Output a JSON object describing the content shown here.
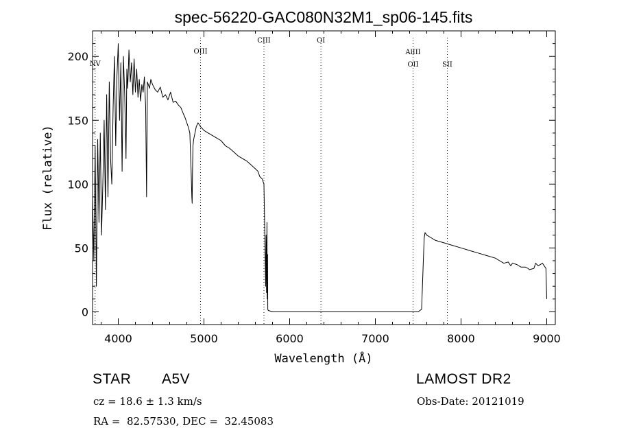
{
  "chart_data": {
    "type": "line",
    "title": "spec-56220-GAC080N32M1_sp06-145.fits",
    "xlabel": "Wavelength (Å)",
    "ylabel": "Flux (relative)",
    "xlim": [
      3700,
      9100
    ],
    "ylim": [
      -10,
      220
    ],
    "xticks": [
      4000,
      5000,
      6000,
      7000,
      8000,
      9000
    ],
    "yticks": [
      0,
      50,
      100,
      150,
      200
    ],
    "grid": false,
    "lines": [
      {
        "label": "NV",
        "x": 3730
      },
      {
        "label": "OIII",
        "x": 4960
      },
      {
        "label": "CIII",
        "x": 5700
      },
      {
        "label": "OI",
        "x": 6365
      },
      {
        "label": "AlIII",
        "x": 7440
      },
      {
        "label": "OII",
        "x": 7440
      },
      {
        "label": "SII",
        "x": 7840
      }
    ],
    "series": [
      {
        "x": [
          3700,
          3715,
          3730,
          3745,
          3760,
          3775,
          3790,
          3805,
          3820,
          3835,
          3850,
          3865,
          3880,
          3895,
          3910,
          3925,
          3940,
          3955,
          3970,
          3985,
          4000,
          4015,
          4030,
          4045,
          4060,
          4075,
          4090,
          4100,
          4110,
          4125,
          4140,
          4155,
          4170,
          4185,
          4200,
          4215,
          4230,
          4245,
          4260,
          4275,
          4290,
          4305,
          4320,
          4330,
          4340,
          4350,
          4365,
          4380,
          4400,
          4430,
          4460,
          4490,
          4520,
          4550,
          4580,
          4610,
          4640,
          4670,
          4700,
          4730,
          4760,
          4780,
          4800,
          4820,
          4835,
          4850,
          4858,
          4862,
          4866,
          4872,
          4880,
          4895,
          4910,
          4930,
          4960,
          5000,
          5050,
          5100,
          5150,
          5200,
          5250,
          5300,
          5350,
          5400,
          5450,
          5500,
          5550,
          5600,
          5630,
          5650,
          5680,
          5700,
          5710,
          5720,
          5725,
          5730,
          5735,
          5738,
          5742,
          5745,
          5750,
          5800,
          5900,
          6000,
          6500,
          7000,
          7200,
          7300,
          7400,
          7500,
          7540,
          7560,
          7570,
          7580,
          7600,
          7650,
          7700,
          7800,
          7900,
          8000,
          8100,
          8200,
          8300,
          8400,
          8450,
          8500,
          8550,
          8580,
          8600,
          8650,
          8700,
          8750,
          8780,
          8800,
          8850,
          8870,
          8900,
          8950,
          8990,
          9000
        ],
        "y": [
          90,
          40,
          130,
          20,
          135,
          70,
          140,
          60,
          100,
          150,
          80,
          170,
          90,
          180,
          120,
          100,
          160,
          200,
          130,
          185,
          210,
          150,
          195,
          110,
          200,
          170,
          120,
          190,
          175,
          205,
          180,
          195,
          170,
          198,
          172,
          190,
          168,
          182,
          165,
          178,
          172,
          184,
          160,
          90,
          180,
          178,
          175,
          182,
          178,
          174,
          172,
          176,
          168,
          170,
          166,
          172,
          164,
          165,
          162,
          160,
          155,
          152,
          148,
          144,
          140,
          110,
          90,
          85,
          110,
          130,
          135,
          140,
          145,
          148,
          145,
          142,
          140,
          138,
          136,
          134,
          130,
          128,
          125,
          122,
          120,
          118,
          115,
          112,
          110,
          106,
          104,
          100,
          60,
          20,
          60,
          15,
          70,
          10,
          45,
          2,
          1,
          0,
          0,
          0,
          0,
          0,
          0,
          0,
          0,
          0,
          2,
          40,
          58,
          62,
          60,
          58,
          56,
          54,
          52,
          50,
          48,
          46,
          44,
          42,
          40,
          38,
          39,
          36,
          38,
          37,
          35,
          35,
          34,
          33,
          34,
          38,
          36,
          38,
          34,
          10
        ]
      }
    ]
  },
  "info": {
    "object_class": "STAR",
    "subclass": "A5V",
    "survey": "LAMOST DR2",
    "redshift": "cz = 18.6 ± 1.3 km/s",
    "obs_date": "Obs-Date: 20121019",
    "coords": "RA =  82.57530, DEC =  32.45083"
  }
}
